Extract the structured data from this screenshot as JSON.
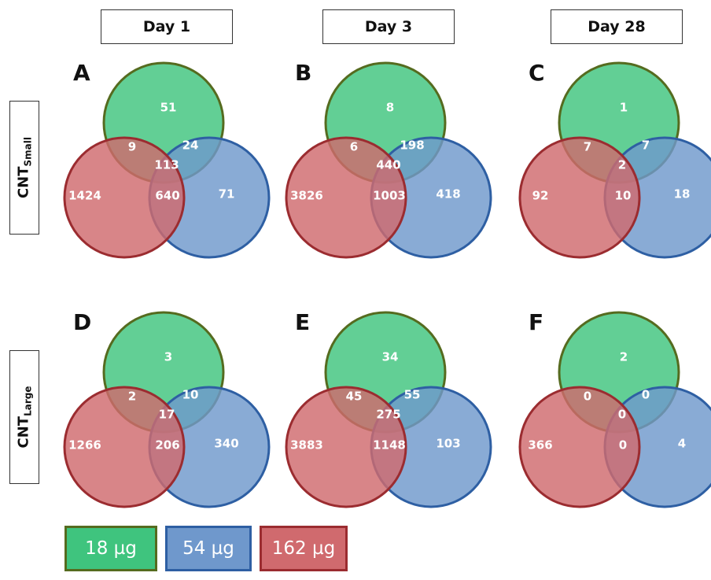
{
  "columns": [
    {
      "label": "Day 1"
    },
    {
      "label": "Day 3"
    },
    {
      "label": "Day 28"
    }
  ],
  "rows": [
    {
      "main": "CNT",
      "sub": "Small"
    },
    {
      "main": "CNT",
      "sub": "Large"
    }
  ],
  "colors": {
    "green_fill": "#3fc47e",
    "green_stroke": "#556b1f",
    "blue_fill": "#6f98cc",
    "blue_stroke": "#2e5fa3",
    "red_fill": "#d06a6e",
    "red_stroke": "#9b2c30",
    "number_text": "#ffffff"
  },
  "legend": [
    {
      "label": "18 µg",
      "fill": "#3fc47e",
      "border": "#556b1f"
    },
    {
      "label": "54 µg",
      "fill": "#6f98cc",
      "border": "#2e5fa3"
    },
    {
      "label": "162 µg",
      "fill": "#d06a6e",
      "border": "#9b2c30"
    }
  ],
  "panels": [
    {
      "letter": "A",
      "regions": {
        "green_only": "51",
        "green_red": "9",
        "green_blue": "24",
        "all": "113",
        "red_only": "1424",
        "red_blue": "640",
        "blue_only": "71"
      }
    },
    {
      "letter": "B",
      "regions": {
        "green_only": "8",
        "green_red": "6",
        "green_blue": "198",
        "all": "440",
        "red_only": "3826",
        "red_blue": "1003",
        "blue_only": "418"
      }
    },
    {
      "letter": "C",
      "regions": {
        "green_only": "1",
        "green_red": "7",
        "green_blue": "7",
        "all": "2",
        "red_only": "92",
        "red_blue": "10",
        "blue_only": "18"
      }
    },
    {
      "letter": "D",
      "regions": {
        "green_only": "3",
        "green_red": "2",
        "green_blue": "10",
        "all": "17",
        "red_only": "1266",
        "red_blue": "206",
        "blue_only": "340"
      }
    },
    {
      "letter": "E",
      "regions": {
        "green_only": "34",
        "green_red": "45",
        "green_blue": "55",
        "all": "275",
        "red_only": "3883",
        "red_blue": "1148",
        "blue_only": "103"
      }
    },
    {
      "letter": "F",
      "regions": {
        "green_only": "2",
        "green_red": "0",
        "green_blue": "0",
        "all": "0",
        "red_only": "366",
        "red_blue": "0",
        "blue_only": "4"
      }
    }
  ]
}
